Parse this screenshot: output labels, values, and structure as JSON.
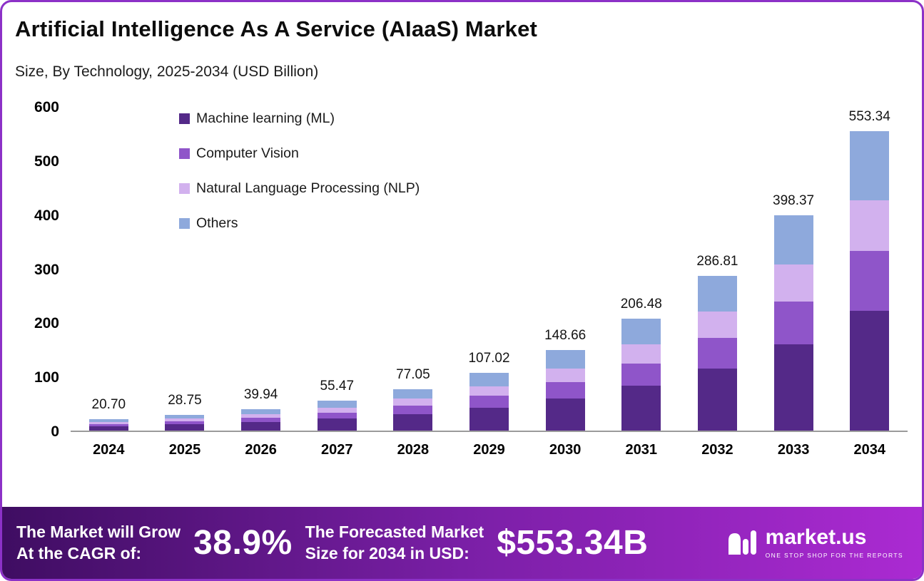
{
  "header": {
    "title": "Artificial Intelligence As A Service (AIaaS) Market",
    "subtitle": "Size, By Technology, 2025-2034 (USD Billion)"
  },
  "chart_data": {
    "type": "bar",
    "stacked": true,
    "title": "Artificial Intelligence As A Service (AIaaS) Market",
    "subtitle": "Size, By Technology, 2025-2034 (USD Billion)",
    "categories": [
      "2024",
      "2025",
      "2026",
      "2027",
      "2028",
      "2029",
      "2030",
      "2031",
      "2032",
      "2033",
      "2034"
    ],
    "total_labels": [
      "20.70",
      "28.75",
      "39.94",
      "55.47",
      "77.05",
      "107.02",
      "148.66",
      "206.48",
      "286.81",
      "398.37",
      "553.34"
    ],
    "totals": [
      20.7,
      28.75,
      39.94,
      55.47,
      77.05,
      107.02,
      148.66,
      206.48,
      286.81,
      398.37,
      553.34
    ],
    "series": [
      {
        "name": "Machine learning (ML)",
        "color": "#542988",
        "values": [
          8.28,
          11.5,
          15.98,
          22.19,
          30.82,
          42.81,
          59.46,
          82.59,
          114.72,
          159.35,
          221.34
        ]
      },
      {
        "name": "Computer Vision",
        "color": "#8f55c9",
        "values": [
          4.14,
          5.75,
          7.99,
          11.09,
          15.41,
          21.4,
          29.73,
          41.3,
          57.36,
          79.67,
          110.67
        ]
      },
      {
        "name": "Natural Language Processing (NLP)",
        "color": "#d2b1ee",
        "values": [
          3.52,
          4.89,
          6.79,
          9.43,
          13.1,
          18.19,
          25.27,
          35.1,
          48.76,
          67.72,
          94.07
        ]
      },
      {
        "name": "Others",
        "color": "#8ea9dc",
        "values": [
          4.76,
          6.61,
          9.18,
          12.76,
          17.72,
          24.62,
          34.2,
          47.49,
          65.97,
          91.63,
          127.26
        ]
      }
    ],
    "ylim": [
      0,
      600
    ],
    "yticks": [
      0,
      100,
      200,
      300,
      400,
      500,
      600
    ],
    "grid": false,
    "legend_position": "top-left-inside"
  },
  "footer": {
    "cagr_label_line1": "The Market will Grow",
    "cagr_label_line2": "At the CAGR of:",
    "cagr_value": "38.9%",
    "forecast_label_line1": "The Forecasted Market",
    "forecast_label_line2": "Size for 2034 in USD:",
    "forecast_value": "$553.34B",
    "brand": "market.us",
    "brand_tagline": "ONE STOP SHOP FOR THE REPORTS"
  },
  "colors": {
    "frame_border": "#8c31c7",
    "footer_gradient_start": "#3f0d62",
    "footer_gradient_mid": "#7a1fa6",
    "footer_gradient_end": "#ab2ad2",
    "axis_line": "#9b9b9b"
  }
}
